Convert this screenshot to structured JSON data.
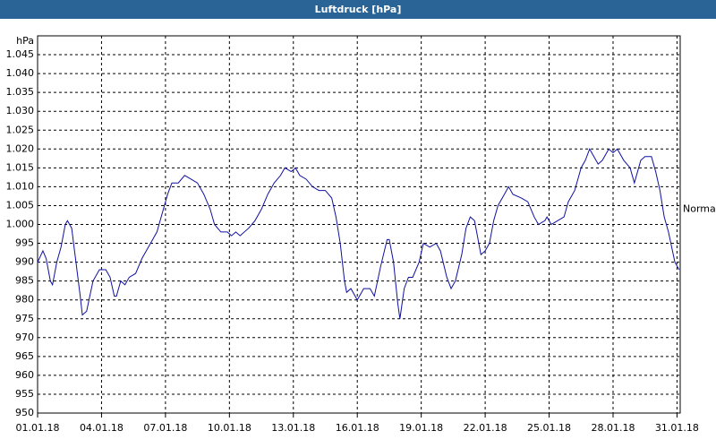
{
  "chart_data": {
    "type": "line",
    "title": "Luftdruck [hPa]",
    "y_unit": "hPa",
    "x": [
      0,
      0.25,
      0.4,
      0.6,
      0.7,
      0.9,
      1.1,
      1.3,
      1.4,
      1.6,
      1.8,
      2.0,
      2.1,
      2.3,
      2.6,
      2.9,
      3.2,
      3.4,
      3.6,
      3.7,
      3.9,
      4.1,
      4.3,
      4.6,
      4.9,
      5.2,
      5.6,
      5.9,
      6.1,
      6.3,
      6.6,
      6.9,
      7.2,
      7.5,
      7.8,
      8.1,
      8.3,
      8.6,
      8.9,
      9.1,
      9.3,
      9.5,
      9.9,
      10.2,
      10.5,
      10.8,
      11.1,
      11.4,
      11.6,
      11.9,
      12.1,
      12.3,
      12.6,
      12.9,
      13.2,
      13.5,
      13.8,
      14.0,
      14.2,
      14.4,
      14.5,
      14.7,
      15.0,
      15.3,
      15.6,
      15.8,
      16.1,
      16.4,
      16.5,
      16.7,
      16.9,
      17.0,
      17.2,
      17.4,
      17.6,
      17.9,
      18.1,
      18.4,
      18.7,
      18.9,
      19.2,
      19.4,
      19.6,
      19.9,
      20.1,
      20.3,
      20.5,
      20.8,
      21.0,
      21.2,
      21.4,
      21.6,
      21.9,
      22.1,
      22.3,
      22.7,
      23.0,
      23.3,
      23.5,
      23.8,
      23.9,
      24.1,
      24.4,
      24.7,
      24.9,
      25.2,
      25.5,
      25.7,
      25.9,
      26.1,
      26.3,
      26.5,
      26.8,
      27.0,
      27.2,
      27.5,
      27.8,
      28.0,
      28.3,
      28.5,
      28.8,
      29.0,
      29.2,
      29.4,
      29.6,
      29.9,
      30.1
    ],
    "series": [
      {
        "color": "#1010a0",
        "values": [
          990,
          993,
          991,
          985,
          984,
          990,
          994,
          1000,
          1001,
          999,
          990,
          981,
          976,
          977,
          985,
          988,
          988,
          986,
          981,
          981,
          985,
          984,
          986,
          987,
          991,
          994,
          998,
          1004,
          1008,
          1011,
          1011,
          1013,
          1012,
          1011,
          1008,
          1004,
          1000,
          998,
          998,
          997,
          998,
          997,
          999,
          1001,
          1004,
          1008,
          1011,
          1013,
          1015,
          1014,
          1015,
          1013,
          1012,
          1010,
          1009,
          1009,
          1007,
          1002,
          995,
          985,
          982,
          983,
          980,
          983,
          983,
          981,
          989,
          996,
          996,
          990,
          979,
          975,
          983,
          986,
          986,
          990,
          995,
          994,
          995,
          993,
          986,
          983,
          985,
          992,
          999,
          1002,
          1001,
          992,
          993,
          995,
          1001,
          1005,
          1008,
          1010,
          1008,
          1007,
          1006,
          1002,
          1000,
          1001,
          1002,
          1000,
          1001,
          1002,
          1006,
          1009,
          1015,
          1017,
          1020,
          1018,
          1016,
          1017,
          1020,
          1019,
          1020,
          1017,
          1015,
          1011,
          1017,
          1018,
          1018,
          1014,
          1009,
          1002,
          998,
          990,
          988
        ]
      }
    ],
    "xlim": [
      0,
      30.15
    ],
    "xticks": [
      {
        "value": 0,
        "label": "01.01.18"
      },
      {
        "value": 3,
        "label": "04.01.18"
      },
      {
        "value": 6,
        "label": "07.01.18"
      },
      {
        "value": 9,
        "label": "10.01.18"
      },
      {
        "value": 12,
        "label": "13.01.18"
      },
      {
        "value": 15,
        "label": "16.01.18"
      },
      {
        "value": 18,
        "label": "19.01.18"
      },
      {
        "value": 21,
        "label": "22.01.18"
      },
      {
        "value": 24,
        "label": "25.01.18"
      },
      {
        "value": 27,
        "label": "28.01.18"
      },
      {
        "value": 30,
        "label": "31.01.18"
      }
    ],
    "ylim": [
      950,
      1050
    ],
    "yticks": [
      950,
      955,
      960,
      965,
      970,
      975,
      980,
      985,
      990,
      995,
      {
        "value": 1000,
        "label": "1.000"
      },
      {
        "value": 1005,
        "label": "1.005"
      },
      {
        "value": 1010,
        "label": "1.010"
      },
      {
        "value": 1015,
        "label": "1.015"
      },
      {
        "value": 1020,
        "label": "1.020"
      },
      {
        "value": 1025,
        "label": "1.025"
      },
      {
        "value": 1030,
        "label": "1.030"
      },
      {
        "value": 1035,
        "label": "1.035"
      },
      {
        "value": 1040,
        "label": "1.040"
      },
      {
        "value": 1045,
        "label": "1.045"
      }
    ],
    "annotation": {
      "text": "Normal",
      "value": 1004
    },
    "grid": true
  }
}
